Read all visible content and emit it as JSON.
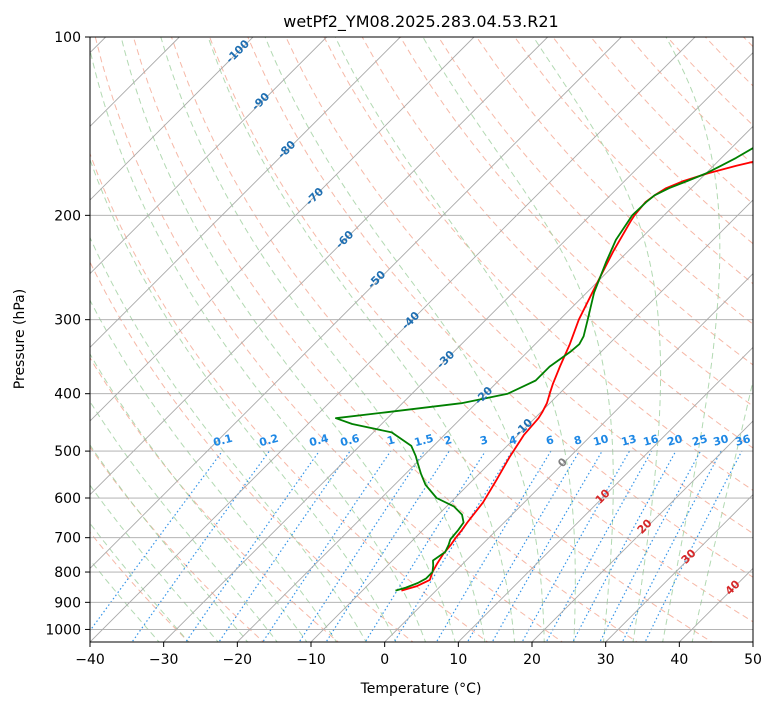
{
  "chart_data": {
    "type": "line",
    "title": "wetPf2_YM08.2025.283.04.53.R21",
    "xlabel": "Temperature (°C)",
    "ylabel": "Pressure (hPa)",
    "xlim": [
      -40,
      50
    ],
    "ylim": [
      1050,
      100
    ],
    "y_scale": "log",
    "x_ticks": [
      -40,
      -30,
      -20,
      -10,
      0,
      10,
      20,
      30,
      40,
      50
    ],
    "y_ticks": [
      100,
      200,
      300,
      400,
      500,
      600,
      700,
      800,
      900,
      1000
    ],
    "grid": true,
    "series": [
      {
        "color": "#ff0000",
        "points": [
          [
            -4.7,
            860
          ],
          [
            -3.2,
            845
          ],
          [
            -2.3,
            825
          ],
          [
            -3.0,
            800
          ],
          [
            -3.5,
            775
          ],
          [
            -4.0,
            745
          ],
          [
            -4.2,
            720
          ],
          [
            -4.5,
            700
          ],
          [
            -4.7,
            680
          ],
          [
            -5.0,
            660
          ],
          [
            -5.6,
            610
          ],
          [
            -6.8,
            560
          ],
          [
            -8.2,
            510
          ],
          [
            -9.2,
            470
          ],
          [
            -9.5,
            440
          ],
          [
            -9.8,
            430
          ],
          [
            -10.4,
            415
          ],
          [
            -11.3,
            400
          ],
          [
            -12.2,
            385
          ],
          [
            -13.6,
            360
          ],
          [
            -15.3,
            330
          ],
          [
            -17.4,
            300
          ],
          [
            -19.9,
            260
          ],
          [
            -22.0,
            230
          ],
          [
            -23.7,
            205
          ],
          [
            -24.0,
            200
          ],
          [
            -24.3,
            190
          ],
          [
            -24.0,
            185
          ],
          [
            -23.4,
            180
          ],
          [
            -22.0,
            175
          ],
          [
            -19.8,
            170
          ],
          [
            -16.9,
            165
          ],
          [
            -13.5,
            160
          ],
          [
            -10.1,
            150
          ],
          [
            -7.0,
            140
          ],
          [
            -4.5,
            130
          ],
          [
            -2.2,
            120
          ],
          [
            -1.2,
            115
          ],
          [
            0.0,
            110
          ],
          [
            1.8,
            105
          ],
          [
            3.5,
            100
          ]
        ]
      },
      {
        "color": "#008000",
        "points": [
          [
            -5.5,
            860
          ],
          [
            -4.5,
            850
          ],
          [
            -3.5,
            835
          ],
          [
            -3.0,
            820
          ],
          [
            -3.0,
            800
          ],
          [
            -3.8,
            780
          ],
          [
            -4.5,
            765
          ],
          [
            -4.0,
            740
          ],
          [
            -4.5,
            720
          ],
          [
            -5.0,
            705
          ],
          [
            -5.2,
            680
          ],
          [
            -5.5,
            660
          ],
          [
            -6.8,
            640
          ],
          [
            -9.0,
            620
          ],
          [
            -12.5,
            600
          ],
          [
            -15.8,
            570
          ],
          [
            -18.0,
            545
          ],
          [
            -19.7,
            525
          ],
          [
            -21.0,
            510
          ],
          [
            -23.0,
            490
          ],
          [
            -27.5,
            465
          ],
          [
            -34.0,
            450
          ],
          [
            -37.0,
            440
          ],
          [
            -31.0,
            430
          ],
          [
            -22.0,
            415
          ],
          [
            -17.0,
            400
          ],
          [
            -15.0,
            380
          ],
          [
            -15.0,
            360
          ],
          [
            -14.2,
            340
          ],
          [
            -14.0,
            330
          ],
          [
            -14.5,
            320
          ],
          [
            -16.2,
            300
          ],
          [
            -19.0,
            270
          ],
          [
            -21.5,
            240
          ],
          [
            -23.2,
            220
          ],
          [
            -24.3,
            200
          ],
          [
            -24.2,
            190
          ],
          [
            -24.0,
            185
          ],
          [
            -23.0,
            180
          ],
          [
            -21.5,
            175
          ],
          [
            -20.0,
            170
          ],
          [
            -19.0,
            165
          ],
          [
            -18.0,
            160
          ],
          [
            -16.4,
            150
          ],
          [
            -14.5,
            140
          ],
          [
            -11.5,
            130
          ],
          [
            -9.2,
            120
          ],
          [
            -6.6,
            110
          ],
          [
            -4.5,
            100
          ]
        ]
      }
    ],
    "dry_adiabat_labels": [
      "-100",
      "-90",
      "-80",
      "-70",
      "-60",
      "-50",
      "-40",
      "-30",
      "-20",
      "-10",
      "0",
      "10",
      "20",
      "30",
      "40"
    ],
    "mixing_ratio_labels": [
      "0.1",
      "0.2",
      "0.4",
      "0.6",
      "1",
      "1.5",
      "2",
      "3",
      "4",
      "6",
      "8",
      "10",
      "13",
      "16",
      "20",
      "25",
      "30",
      "36"
    ]
  },
  "colors": {
    "temperature": "#ff0000",
    "dewpoint": "#008000",
    "dry_adiabat": "#f3a08a",
    "moist_adiabat": "#9fcf9f",
    "mixing_ratio": "#1e88e5",
    "isotherm": "#a9a9a9",
    "label_blue": "#1f6fb2",
    "label_red": "#d62728",
    "label_gray": "#808080"
  }
}
